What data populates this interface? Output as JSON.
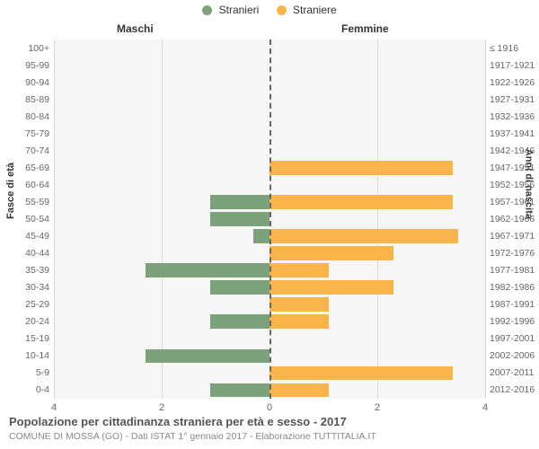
{
  "legend": {
    "male": "Stranieri",
    "female": "Straniere"
  },
  "columns": {
    "left": "Maschi",
    "right": "Femmine"
  },
  "axes": {
    "left_title": "Fasce di età",
    "right_title": "Anni di nascita",
    "xlim": 4,
    "xticks": [
      4,
      2,
      0,
      2,
      4
    ]
  },
  "colors": {
    "male": "#7da17a",
    "female": "#f9b54a",
    "plot_bg": "#f6f6f6",
    "grid": "#d9d9d9",
    "center": "#666666",
    "page_bg": "#ffffff"
  },
  "style": {
    "bar_height_pct": 82,
    "title_fontsize": 13,
    "sub_fontsize": 10.5,
    "label_fontsize": 10.5
  },
  "rows": [
    {
      "age": "100+",
      "year": "≤ 1916",
      "m": 0,
      "f": 0
    },
    {
      "age": "95-99",
      "year": "1917-1921",
      "m": 0,
      "f": 0
    },
    {
      "age": "90-94",
      "year": "1922-1926",
      "m": 0,
      "f": 0
    },
    {
      "age": "85-89",
      "year": "1927-1931",
      "m": 0,
      "f": 0
    },
    {
      "age": "80-84",
      "year": "1932-1936",
      "m": 0,
      "f": 0
    },
    {
      "age": "75-79",
      "year": "1937-1941",
      "m": 0,
      "f": 0
    },
    {
      "age": "70-74",
      "year": "1942-1946",
      "m": 0,
      "f": 0
    },
    {
      "age": "65-69",
      "year": "1947-1951",
      "m": 0,
      "f": 3.4
    },
    {
      "age": "60-64",
      "year": "1952-1956",
      "m": 0,
      "f": 0
    },
    {
      "age": "55-59",
      "year": "1957-1961",
      "m": 1.1,
      "f": 3.4
    },
    {
      "age": "50-54",
      "year": "1962-1966",
      "m": 1.1,
      "f": 0
    },
    {
      "age": "45-49",
      "year": "1967-1971",
      "m": 0.3,
      "f": 3.5
    },
    {
      "age": "40-44",
      "year": "1972-1976",
      "m": 0,
      "f": 2.3
    },
    {
      "age": "35-39",
      "year": "1977-1981",
      "m": 2.3,
      "f": 1.1
    },
    {
      "age": "30-34",
      "year": "1982-1986",
      "m": 1.1,
      "f": 2.3
    },
    {
      "age": "25-29",
      "year": "1987-1991",
      "m": 0,
      "f": 1.1
    },
    {
      "age": "20-24",
      "year": "1992-1996",
      "m": 1.1,
      "f": 1.1
    },
    {
      "age": "15-19",
      "year": "1997-2001",
      "m": 0,
      "f": 0
    },
    {
      "age": "10-14",
      "year": "2002-2006",
      "m": 2.3,
      "f": 0
    },
    {
      "age": "5-9",
      "year": "2007-2011",
      "m": 0,
      "f": 3.4
    },
    {
      "age": "0-4",
      "year": "2012-2016",
      "m": 1.1,
      "f": 1.1
    }
  ],
  "title": "Popolazione per cittadinanza straniera per età e sesso - 2017",
  "subtitle": "COMUNE DI MOSSA (GO) - Dati ISTAT 1° gennaio 2017 - Elaborazione TUTTITALIA.IT"
}
